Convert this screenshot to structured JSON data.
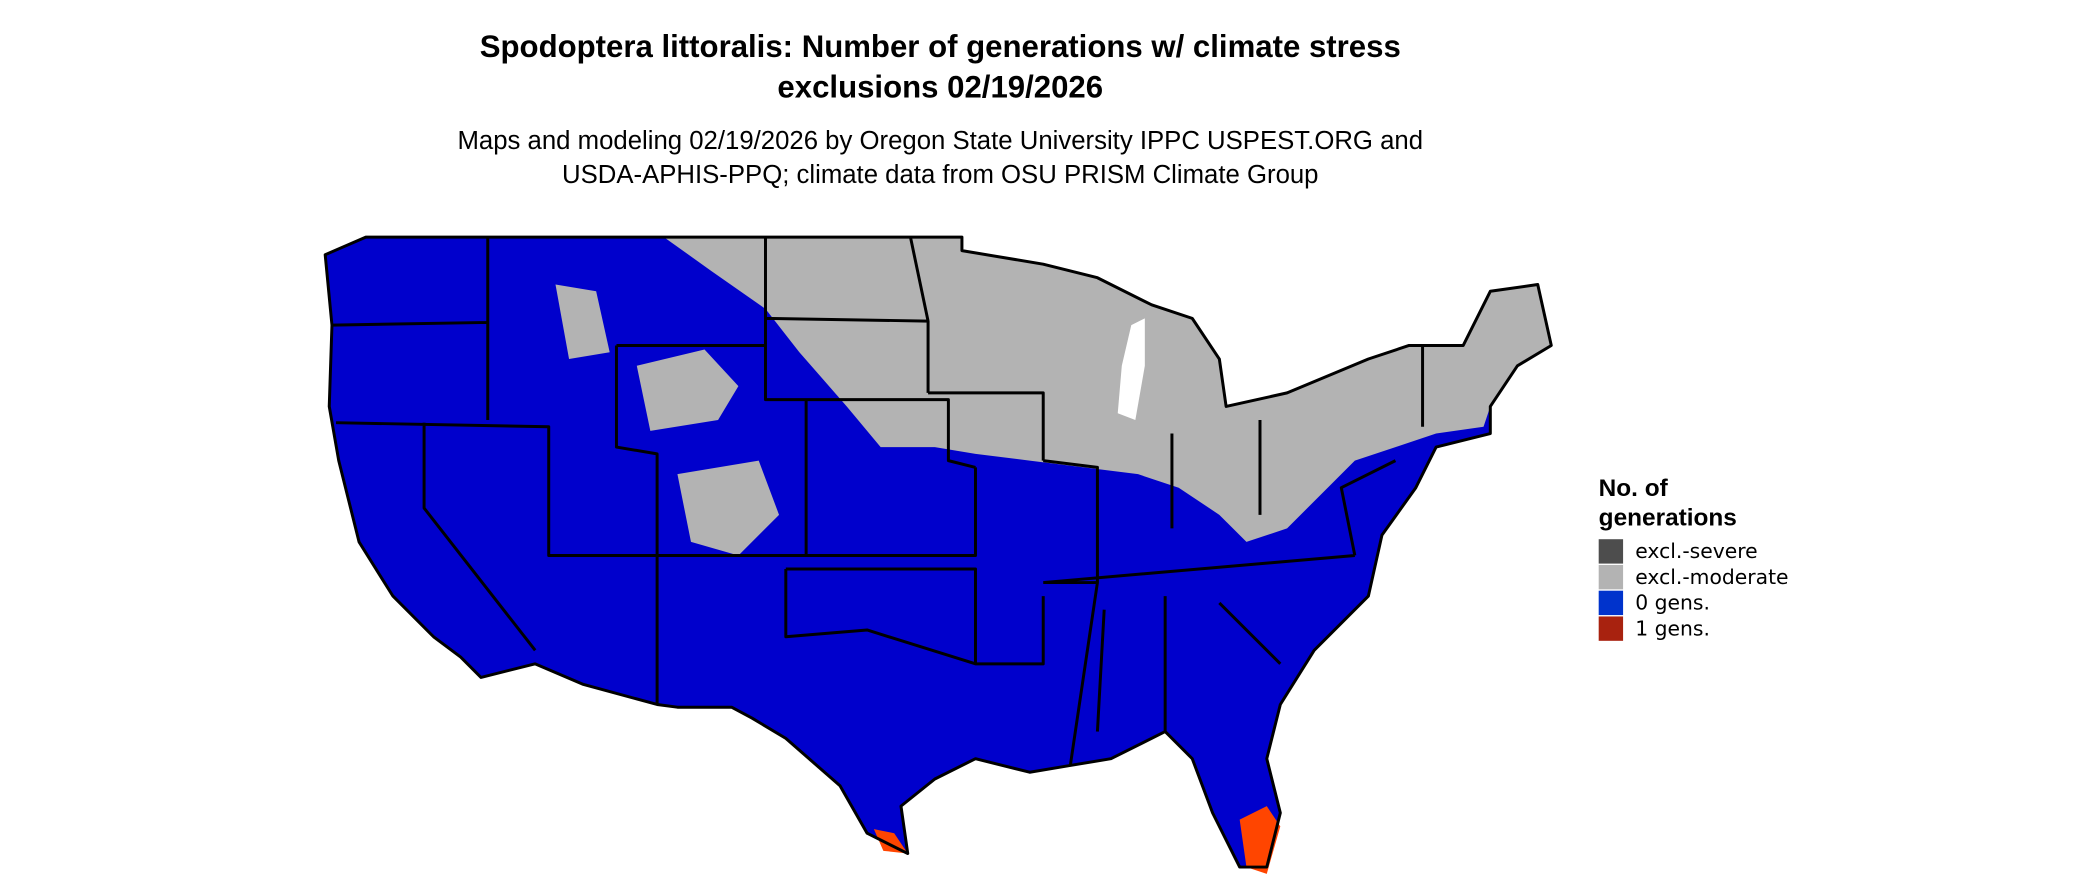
{
  "map": {
    "title": [
      "Spodoptera littoralis: Number of generations w/ climate stress",
      "exclusions 02/19/2026"
    ],
    "subtitle": [
      "Maps and modeling 02/19/2026 by Oregon State University IPPC USPEST.ORG and",
      "USDA-APHIS-PPQ; climate data from OSU PRISM Climate Group"
    ],
    "legend": {
      "title": [
        "No. of",
        "generations"
      ],
      "items": [
        {
          "label": "excl.-severe",
          "color": "#4d4d4d"
        },
        {
          "label": "excl.-moderate",
          "color": "#b3b3b3"
        },
        {
          "label": "0 gens.",
          "color": "#0033cc"
        },
        {
          "label": "1 gens.",
          "color": "#a8220f"
        }
      ]
    }
  }
}
